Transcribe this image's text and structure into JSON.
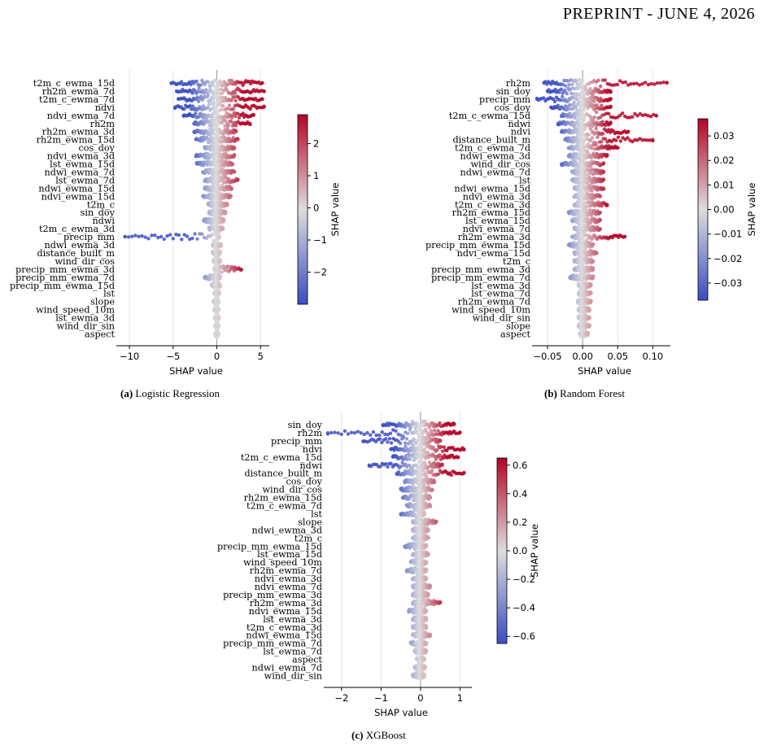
{
  "header": {
    "text": "PREPRINT - JUNE 4, 2026"
  },
  "colorbar_colors": {
    "low": "#3b4cc0",
    "mid": "#dddddd",
    "high": "#b40426"
  },
  "chart_data": [
    {
      "type": "scatter",
      "subtype": "shap-beeswarm",
      "caption_tag": "(a)",
      "caption_text": "Logistic Regression",
      "xlabel": "SHAP value",
      "colorbar_label": "SHAP value",
      "xlim": [
        -11.5,
        6.0
      ],
      "xticks": [
        -10,
        -5,
        0,
        5
      ],
      "colorbar_range": [
        -3.0,
        2.9
      ],
      "colorbar_ticks": [
        -2,
        -1,
        0,
        1,
        2
      ],
      "features": [
        {
          "name": "t2m_c_ewma_15d",
          "min": -5.2,
          "max": 5.2
        },
        {
          "name": "rh2m_ewma_7d",
          "min": -4.6,
          "max": 5.4
        },
        {
          "name": "t2m_c_ewma_7d",
          "min": -4.4,
          "max": 5.2
        },
        {
          "name": "ndvi",
          "min": -4.8,
          "max": 5.4
        },
        {
          "name": "ndvi_ewma_7d",
          "min": -3.8,
          "max": 4.2
        },
        {
          "name": "rh2m",
          "min": -2.6,
          "max": 3.8
        },
        {
          "name": "rh2m_ewma_3d",
          "min": -2.6,
          "max": 2.2
        },
        {
          "name": "rh2m_ewma_15d",
          "min": -2.4,
          "max": 2.4
        },
        {
          "name": "cos_doy",
          "min": -1.4,
          "max": 2.0
        },
        {
          "name": "ndvi_ewma_3d",
          "min": -2.4,
          "max": 2.0
        },
        {
          "name": "lst_ewma_15d",
          "min": -2.3,
          "max": 1.8
        },
        {
          "name": "ndwi_ewma_7d",
          "min": -1.6,
          "max": 2.0
        },
        {
          "name": "lst_ewma_7d",
          "min": -1.4,
          "max": 2.4
        },
        {
          "name": "ndwi_ewma_15d",
          "min": -1.4,
          "max": 1.7
        },
        {
          "name": "ndvi_ewma_15d",
          "min": -1.6,
          "max": 1.6
        },
        {
          "name": "t2m_c",
          "min": -1.0,
          "max": 1.2
        },
        {
          "name": "sin_doy",
          "min": -0.9,
          "max": 1.0
        },
        {
          "name": "ndwi",
          "min": -1.5,
          "max": 0.8
        },
        {
          "name": "t2m_c_ewma_3d",
          "min": -0.9,
          "max": 0.7
        },
        {
          "name": "precip_mm",
          "min": -10.5,
          "max": 0.3
        },
        {
          "name": "ndwi_ewma_3d",
          "min": -0.5,
          "max": 0.5
        },
        {
          "name": "distance_built_m",
          "min": -0.5,
          "max": 0.4
        },
        {
          "name": "wind_dir_cos",
          "min": -0.4,
          "max": 0.4
        },
        {
          "name": "precip_mm_ewma_3d",
          "min": -0.3,
          "max": 2.8
        },
        {
          "name": "precip_mm_ewma_7d",
          "min": -1.4,
          "max": 0.4
        },
        {
          "name": "precip_mm_ewma_15d",
          "min": -0.6,
          "max": 0.4
        },
        {
          "name": "lst",
          "min": -0.3,
          "max": 0.3
        },
        {
          "name": "slope",
          "min": -0.4,
          "max": 0.2
        },
        {
          "name": "wind_speed_10m",
          "min": -0.3,
          "max": 0.2
        },
        {
          "name": "lst_ewma_3d",
          "min": -0.25,
          "max": 0.25
        },
        {
          "name": "wind_dir_sin",
          "min": -0.2,
          "max": 0.2
        },
        {
          "name": "aspect",
          "min": -0.2,
          "max": 0.2
        }
      ]
    },
    {
      "type": "scatter",
      "subtype": "shap-beeswarm",
      "caption_tag": "(b)",
      "caption_text": "Random Forest",
      "xlabel": "SHAP value",
      "colorbar_label": "SHAP value",
      "xlim": [
        -0.072,
        0.125
      ],
      "xticks": [
        -0.05,
        0.0,
        0.05,
        0.1
      ],
      "xtick_labels": [
        "−0.05",
        "0.00",
        "0.05",
        "0.10"
      ],
      "colorbar_range": [
        -0.037,
        0.037
      ],
      "colorbar_ticks": [
        -0.03,
        -0.02,
        -0.01,
        0.0,
        0.01,
        0.02,
        0.03
      ],
      "colorbar_tick_labels": [
        "−0.03",
        "−0.02",
        "−0.01",
        "0.00",
        "0.01",
        "0.02",
        "0.03"
      ],
      "features": [
        {
          "name": "rh2m",
          "min": -0.055,
          "max": 0.12
        },
        {
          "name": "sin_doy",
          "min": -0.05,
          "max": 0.04
        },
        {
          "name": "precip_mm",
          "min": -0.065,
          "max": 0.04
        },
        {
          "name": "cos_doy",
          "min": -0.045,
          "max": 0.04
        },
        {
          "name": "t2m_c_ewma_15d",
          "min": -0.03,
          "max": 0.105
        },
        {
          "name": "ndwi",
          "min": -0.035,
          "max": 0.04
        },
        {
          "name": "ndvi",
          "min": -0.03,
          "max": 0.065
        },
        {
          "name": "distance_built_m",
          "min": -0.025,
          "max": 0.1
        },
        {
          "name": "t2m_c_ewma_7d",
          "min": -0.02,
          "max": 0.05
        },
        {
          "name": "ndwi_ewma_3d",
          "min": -0.02,
          "max": 0.035
        },
        {
          "name": "wind_dir_cos",
          "min": -0.03,
          "max": 0.03
        },
        {
          "name": "ndwi_ewma_7d",
          "min": -0.015,
          "max": 0.03
        },
        {
          "name": "lst",
          "min": -0.015,
          "max": 0.03
        },
        {
          "name": "ndwi_ewma_15d",
          "min": -0.012,
          "max": 0.03
        },
        {
          "name": "ndvi_ewma_3d",
          "min": -0.012,
          "max": 0.025
        },
        {
          "name": "t2m_c_ewma_3d",
          "min": -0.012,
          "max": 0.035
        },
        {
          "name": "rh2m_ewma_15d",
          "min": -0.02,
          "max": 0.025
        },
        {
          "name": "lst_ewma_15d",
          "min": -0.015,
          "max": 0.025
        },
        {
          "name": "ndvi_ewma_7d",
          "min": -0.012,
          "max": 0.025
        },
        {
          "name": "rh2m_ewma_3d",
          "min": -0.015,
          "max": 0.06
        },
        {
          "name": "precip_mm_ewma_15d",
          "min": -0.02,
          "max": 0.015
        },
        {
          "name": "ndvi_ewma_15d",
          "min": -0.012,
          "max": 0.02
        },
        {
          "name": "t2m_c",
          "min": -0.012,
          "max": 0.015
        },
        {
          "name": "precip_mm_ewma_3d",
          "min": -0.012,
          "max": 0.015
        },
        {
          "name": "precip_mm_ewma_7d",
          "min": -0.018,
          "max": 0.015
        },
        {
          "name": "lst_ewma_3d",
          "min": -0.006,
          "max": 0.012
        },
        {
          "name": "lst_ewma_7d",
          "min": -0.006,
          "max": 0.012
        },
        {
          "name": "rh2m_ewma_7d",
          "min": -0.007,
          "max": 0.012
        },
        {
          "name": "wind_speed_10m",
          "min": -0.006,
          "max": 0.01
        },
        {
          "name": "wind_dir_sin",
          "min": -0.006,
          "max": 0.01
        },
        {
          "name": "slope",
          "min": -0.006,
          "max": 0.01
        },
        {
          "name": "aspect",
          "min": -0.004,
          "max": 0.008
        }
      ]
    },
    {
      "type": "scatter",
      "subtype": "shap-beeswarm",
      "caption_tag": "(c)",
      "caption_text": "XGBoost",
      "xlabel": "SHAP value",
      "colorbar_label": "SHAP value",
      "xlim": [
        -2.45,
        1.3
      ],
      "xticks": [
        -2,
        -1,
        0,
        1
      ],
      "colorbar_range": [
        -0.65,
        0.65
      ],
      "colorbar_ticks": [
        -0.6,
        -0.4,
        -0.2,
        0.0,
        0.2,
        0.4,
        0.6
      ],
      "colorbar_tick_labels": [
        "−0.6",
        "−0.4",
        "−0.2",
        "0.0",
        "0.2",
        "0.4",
        "0.6"
      ],
      "features": [
        {
          "name": "sin_doy",
          "min": -0.95,
          "max": 0.85
        },
        {
          "name": "rh2m",
          "min": -2.35,
          "max": 1.0
        },
        {
          "name": "precip_mm",
          "min": -1.45,
          "max": 0.5
        },
        {
          "name": "ndvi",
          "min": -0.75,
          "max": 1.1
        },
        {
          "name": "t2m_c_ewma_15d",
          "min": -0.7,
          "max": 0.95
        },
        {
          "name": "ndwi",
          "min": -1.3,
          "max": 0.55
        },
        {
          "name": "distance_built_m",
          "min": -0.6,
          "max": 1.1
        },
        {
          "name": "cos_doy",
          "min": -0.4,
          "max": 0.35
        },
        {
          "name": "wind_dir_cos",
          "min": -0.5,
          "max": 0.3
        },
        {
          "name": "rh2m_ewma_15d",
          "min": -0.45,
          "max": 0.25
        },
        {
          "name": "t2m_c_ewma_7d",
          "min": -0.35,
          "max": 0.25
        },
        {
          "name": "lst",
          "min": -0.5,
          "max": 0.1
        },
        {
          "name": "slope",
          "min": -0.2,
          "max": 0.4
        },
        {
          "name": "ndwi_ewma_3d",
          "min": -0.2,
          "max": 0.2
        },
        {
          "name": "t2m_c",
          "min": -0.2,
          "max": 0.2
        },
        {
          "name": "precip_mm_ewma_15d",
          "min": -0.4,
          "max": 0.15
        },
        {
          "name": "lst_ewma_15d",
          "min": -0.2,
          "max": 0.2
        },
        {
          "name": "wind_speed_10m",
          "min": -0.25,
          "max": 0.15
        },
        {
          "name": "rh2m_ewma_7d",
          "min": -0.35,
          "max": 0.15
        },
        {
          "name": "ndvi_ewma_3d",
          "min": -0.2,
          "max": 0.15
        },
        {
          "name": "ndvi_ewma_7d",
          "min": -0.2,
          "max": 0.25
        },
        {
          "name": "precip_mm_ewma_3d",
          "min": -0.2,
          "max": 0.2
        },
        {
          "name": "rh2m_ewma_3d",
          "min": -0.2,
          "max": 0.5
        },
        {
          "name": "ndvi_ewma_15d",
          "min": -0.3,
          "max": 0.15
        },
        {
          "name": "lst_ewma_3d",
          "min": -0.2,
          "max": 0.15
        },
        {
          "name": "t2m_c_ewma_3d",
          "min": -0.2,
          "max": 0.15
        },
        {
          "name": "ndwi_ewma_15d",
          "min": -0.2,
          "max": 0.25
        },
        {
          "name": "precip_mm_ewma_7d",
          "min": -0.25,
          "max": 0.15
        },
        {
          "name": "lst_ewma_7d",
          "min": -0.15,
          "max": 0.15
        },
        {
          "name": "aspect",
          "min": -0.1,
          "max": 0.1
        },
        {
          "name": "ndwi_ewma_7d",
          "min": -0.15,
          "max": 0.12
        },
        {
          "name": "wind_dir_sin",
          "min": -0.2,
          "max": 0.1
        }
      ]
    }
  ]
}
